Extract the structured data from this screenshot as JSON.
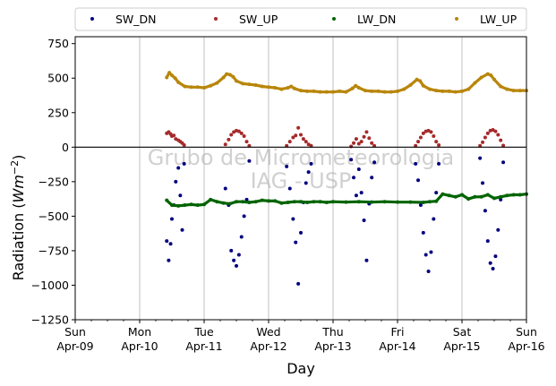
{
  "chart_data": {
    "type": "scatter",
    "title": "",
    "xlabel": "Day",
    "ylabel": "Radiation",
    "ylabel_unit": "Wm",
    "ylabel_unit_exp": "−2",
    "xlim": [
      0,
      7
    ],
    "ylim": [
      -1250,
      800
    ],
    "yticks": [
      -1250,
      -1000,
      -750,
      -500,
      -250,
      0,
      250,
      500,
      750
    ],
    "ytick_labels": [
      "−1250",
      "−1000",
      "−750",
      "−500",
      "−250",
      "0",
      "250",
      "500",
      "750"
    ],
    "xticks": [
      0,
      1,
      2,
      3,
      4,
      5,
      6,
      7
    ],
    "xtick_labels": [
      [
        "Sun",
        "Apr-09"
      ],
      [
        "Mon",
        "Apr-10"
      ],
      [
        "Tue",
        "Apr-11"
      ],
      [
        "Wed",
        "Apr-12"
      ],
      [
        "Thu",
        "Apr-13"
      ],
      [
        "Fri",
        "Apr-14"
      ],
      [
        "Sat",
        "Apr-15"
      ],
      [
        "Sun",
        "Apr-16"
      ]
    ],
    "grid": "vertical",
    "zero_line": true,
    "legend_placement": "top",
    "watermark": [
      "Grubo de Micrometeorologia",
      "IAG - USP"
    ],
    "series": [
      {
        "name": "SW_DN",
        "color": "#00007f",
        "x": [
          1.42,
          1.45,
          1.48,
          1.5,
          1.53,
          1.56,
          1.6,
          1.63,
          1.66,
          1.69,
          2.33,
          2.38,
          2.42,
          2.46,
          2.5,
          2.54,
          2.58,
          2.62,
          2.66,
          2.7,
          3.28,
          3.33,
          3.38,
          3.42,
          3.46,
          3.5,
          3.54,
          3.58,
          3.62,
          3.66,
          4.28,
          4.32,
          4.36,
          4.4,
          4.44,
          4.48,
          4.52,
          4.56,
          4.6,
          4.64,
          5.28,
          5.32,
          5.36,
          5.4,
          5.44,
          5.48,
          5.52,
          5.56,
          5.6,
          5.64,
          6.28,
          6.32,
          6.36,
          6.4,
          6.44,
          6.48,
          6.52,
          6.56,
          6.6,
          6.64
        ],
        "y": [
          -680,
          -820,
          -700,
          -520,
          -420,
          -250,
          -150,
          -350,
          -600,
          -120,
          -300,
          -420,
          -750,
          -820,
          -860,
          -780,
          -650,
          -500,
          -380,
          -100,
          -140,
          -300,
          -520,
          -690,
          -990,
          -620,
          -400,
          -260,
          -180,
          -120,
          -90,
          -220,
          -350,
          -160,
          -330,
          -530,
          -820,
          -410,
          -220,
          -110,
          -120,
          -240,
          -420,
          -620,
          -780,
          -900,
          -760,
          -520,
          -330,
          -120,
          -80,
          -260,
          -460,
          -680,
          -840,
          -880,
          -790,
          -600,
          -380,
          -110
        ]
      },
      {
        "name": "SW_UP",
        "color": "#a52a2a",
        "x": [
          1.42,
          1.45,
          1.48,
          1.5,
          1.53,
          1.56,
          1.6,
          1.63,
          1.66,
          1.69,
          2.33,
          2.38,
          2.42,
          2.46,
          2.5,
          2.54,
          2.58,
          2.62,
          2.66,
          2.7,
          3.28,
          3.33,
          3.38,
          3.42,
          3.46,
          3.5,
          3.54,
          3.58,
          3.62,
          3.66,
          4.28,
          4.32,
          4.36,
          4.4,
          4.44,
          4.48,
          4.52,
          4.56,
          4.6,
          4.64,
          5.28,
          5.32,
          5.36,
          5.4,
          5.44,
          5.48,
          5.52,
          5.56,
          5.6,
          5.64,
          6.28,
          6.32,
          6.36,
          6.4,
          6.44,
          6.48,
          6.52,
          6.56,
          6.6,
          6.64
        ],
        "y": [
          100,
          110,
          95,
          80,
          85,
          60,
          50,
          40,
          30,
          15,
          20,
          55,
          90,
          110,
          120,
          115,
          100,
          80,
          40,
          10,
          10,
          40,
          70,
          85,
          140,
          90,
          60,
          40,
          20,
          10,
          5,
          30,
          60,
          25,
          40,
          75,
          110,
          65,
          30,
          10,
          10,
          40,
          70,
          100,
          115,
          120,
          110,
          80,
          40,
          15,
          10,
          35,
          70,
          100,
          120,
          125,
          115,
          90,
          50,
          12
        ]
      },
      {
        "name": "LW_DN",
        "color": "#006400",
        "x": [
          1.42,
          1.5,
          1.6,
          1.7,
          1.8,
          1.9,
          2.0,
          2.1,
          2.2,
          2.3,
          2.4,
          2.5,
          2.6,
          2.7,
          2.8,
          2.9,
          3.0,
          3.1,
          3.2,
          3.3,
          3.4,
          3.5,
          3.6,
          3.7,
          3.8,
          3.9,
          4.0,
          4.2,
          4.4,
          4.6,
          4.8,
          5.0,
          5.2,
          5.4,
          5.5,
          5.6,
          5.7,
          5.8,
          5.9,
          6.0,
          6.1,
          6.2,
          6.3,
          6.4,
          6.5,
          6.6,
          6.7,
          6.8,
          6.9,
          7.0
        ],
        "y": [
          -385,
          -420,
          -425,
          -420,
          -415,
          -420,
          -415,
          -380,
          -395,
          -405,
          -410,
          -395,
          -395,
          -400,
          -395,
          -385,
          -390,
          -390,
          -405,
          -400,
          -395,
          -395,
          -400,
          -395,
          -395,
          -400,
          -395,
          -398,
          -395,
          -398,
          -395,
          -398,
          -398,
          -400,
          -395,
          -392,
          -340,
          -350,
          -360,
          -345,
          -375,
          -360,
          -360,
          -345,
          -370,
          -360,
          -350,
          -345,
          -345,
          -340
        ]
      },
      {
        "name": "LW_UP",
        "color": "#b8860b",
        "x": [
          1.42,
          1.46,
          1.5,
          1.55,
          1.6,
          1.7,
          1.8,
          1.9,
          2.0,
          2.1,
          2.2,
          2.3,
          2.35,
          2.4,
          2.45,
          2.5,
          2.6,
          2.7,
          2.8,
          2.9,
          3.0,
          3.1,
          3.2,
          3.3,
          3.35,
          3.4,
          3.5,
          3.6,
          3.7,
          3.8,
          3.9,
          4.0,
          4.1,
          4.2,
          4.3,
          4.35,
          4.4,
          4.5,
          4.6,
          4.7,
          4.8,
          4.9,
          5.0,
          5.1,
          5.2,
          5.3,
          5.35,
          5.4,
          5.5,
          5.6,
          5.7,
          5.8,
          5.9,
          6.0,
          6.1,
          6.2,
          6.3,
          6.4,
          6.45,
          6.5,
          6.6,
          6.7,
          6.8,
          6.9,
          7.0
        ],
        "y": [
          505,
          540,
          520,
          500,
          470,
          440,
          435,
          435,
          430,
          445,
          465,
          505,
          530,
          525,
          510,
          480,
          460,
          455,
          450,
          440,
          435,
          430,
          420,
          430,
          440,
          425,
          410,
          405,
          405,
          400,
          400,
          400,
          405,
          400,
          425,
          445,
          430,
          410,
          405,
          405,
          400,
          400,
          405,
          420,
          450,
          490,
          480,
          445,
          420,
          410,
          405,
          405,
          400,
          405,
          420,
          465,
          505,
          530,
          520,
          490,
          440,
          420,
          410,
          410,
          410
        ]
      }
    ]
  }
}
